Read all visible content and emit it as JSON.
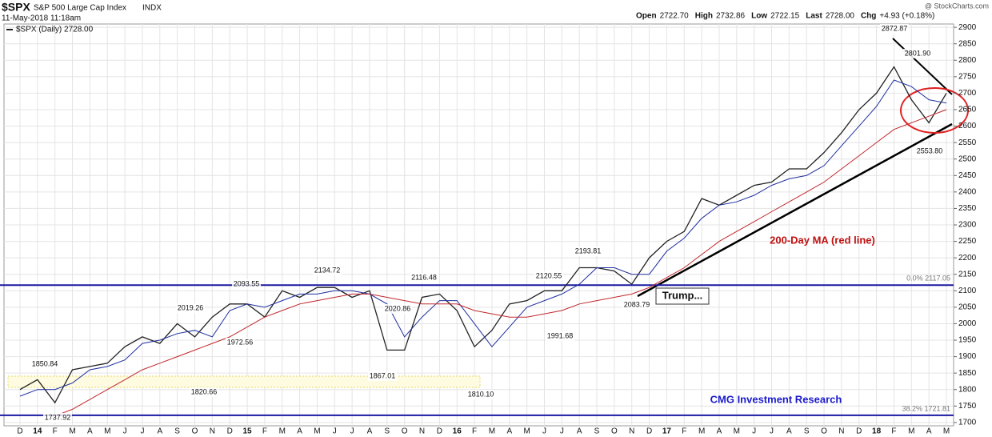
{
  "chart_data": {
    "type": "line",
    "header": {
      "symbol": "$SPX",
      "name": "S&P 500 Large Cap Index",
      "exchange": "INDX",
      "date": "11-May-2018 11:18am",
      "source": "@ StockCharts.com",
      "quote": [
        {
          "label": "Open",
          "value": "2722.70"
        },
        {
          "label": "High",
          "value": "2732.86"
        },
        {
          "label": "Low",
          "value": "2722.15"
        },
        {
          "label": "Last",
          "value": "2728.00"
        },
        {
          "label": "Chg",
          "value": "+4.93 (+0.18%)"
        }
      ]
    },
    "categories": [
      "D",
      "14",
      "F",
      "M",
      "A",
      "M",
      "J",
      "J",
      "A",
      "S",
      "O",
      "N",
      "D",
      "15",
      "F",
      "M",
      "A",
      "M",
      "J",
      "J",
      "A",
      "S",
      "O",
      "N",
      "D",
      "16",
      "F",
      "M",
      "A",
      "M",
      "J",
      "J",
      "A",
      "S",
      "O",
      "N",
      "D",
      "17",
      "F",
      "M",
      "A",
      "M",
      "J",
      "J",
      "A",
      "S",
      "O",
      "N",
      "D",
      "18",
      "F",
      "M",
      "A",
      "M"
    ],
    "series": [
      {
        "name": "$SPX (Daily) 2728.00",
        "color": "#222222",
        "values": [
          1800,
          1830,
          1760,
          1860,
          1870,
          1880,
          1930,
          1960,
          1940,
          2000,
          1960,
          2020,
          2060,
          2060,
          2020,
          2100,
          2080,
          2110,
          2110,
          2080,
          2100,
          1920,
          1920,
          2080,
          2090,
          2040,
          1930,
          1980,
          2060,
          2070,
          2100,
          2100,
          2170,
          2170,
          2160,
          2120,
          2200,
          2250,
          2280,
          2380,
          2360,
          2390,
          2420,
          2430,
          2470,
          2470,
          2520,
          2580,
          2650,
          2700,
          2780,
          2680,
          2610,
          2700
        ]
      },
      {
        "color": "#1f2f9f",
        "values": [
          1780,
          1800,
          1800,
          1820,
          1860,
          1870,
          1890,
          1940,
          1950,
          1970,
          1980,
          1960,
          2040,
          2060,
          2050,
          2070,
          2090,
          2090,
          2100,
          2100,
          2090,
          2060,
          1960,
          2020,
          2070,
          2070,
          2000,
          1930,
          1990,
          2050,
          2070,
          2090,
          2120,
          2170,
          2170,
          2150,
          2150,
          2220,
          2260,
          2320,
          2360,
          2370,
          2390,
          2420,
          2440,
          2450,
          2480,
          2540,
          2600,
          2660,
          2740,
          2720,
          2680,
          2670
        ]
      },
      {
        "name": "200-Day MA (red line)",
        "color": "#c0282d",
        "values": [
          null,
          null,
          1720,
          1740,
          1770,
          1800,
          1830,
          1860,
          1880,
          1900,
          1920,
          1940,
          1960,
          1990,
          2020,
          2040,
          2060,
          2070,
          2080,
          2090,
          2090,
          2080,
          2070,
          2060,
          2060,
          2060,
          2040,
          2030,
          2020,
          2020,
          2030,
          2040,
          2060,
          2070,
          2080,
          2090,
          2110,
          2140,
          2170,
          2210,
          2250,
          2280,
          2310,
          2340,
          2370,
          2400,
          2430,
          2470,
          2510,
          2550,
          2590,
          2610,
          2630,
          2650
        ]
      }
    ],
    "ylim": [
      1690,
      2910
    ],
    "yticks": [
      1700,
      1750,
      1800,
      1850,
      1900,
      1950,
      2000,
      2050,
      2100,
      2150,
      2200,
      2250,
      2300,
      2350,
      2400,
      2450,
      2500,
      2550,
      2600,
      2650,
      2700,
      2750,
      2800,
      2850,
      2900
    ],
    "grid": true,
    "hlines": [
      {
        "value": 2117.05,
        "label": "0.0% 2117.05",
        "color": "#1a1aa0"
      },
      {
        "value": 1721.81,
        "label": "38.2% 1721.81",
        "color": "#1a1aa0"
      }
    ],
    "annotations": [
      "1850.84",
      "1737.92",
      "2019.26",
      "1820.66",
      "1972.56",
      "2093.55",
      "2134.72",
      "2020.86",
      "1867.01",
      "2116.48",
      "1810.10",
      "1991.68",
      "2120.55",
      "2193.81",
      "2083.79",
      "2872.87",
      "2801.90",
      "2553.80"
    ],
    "callout": "Trump...",
    "credit": "CMG Investment Research"
  }
}
